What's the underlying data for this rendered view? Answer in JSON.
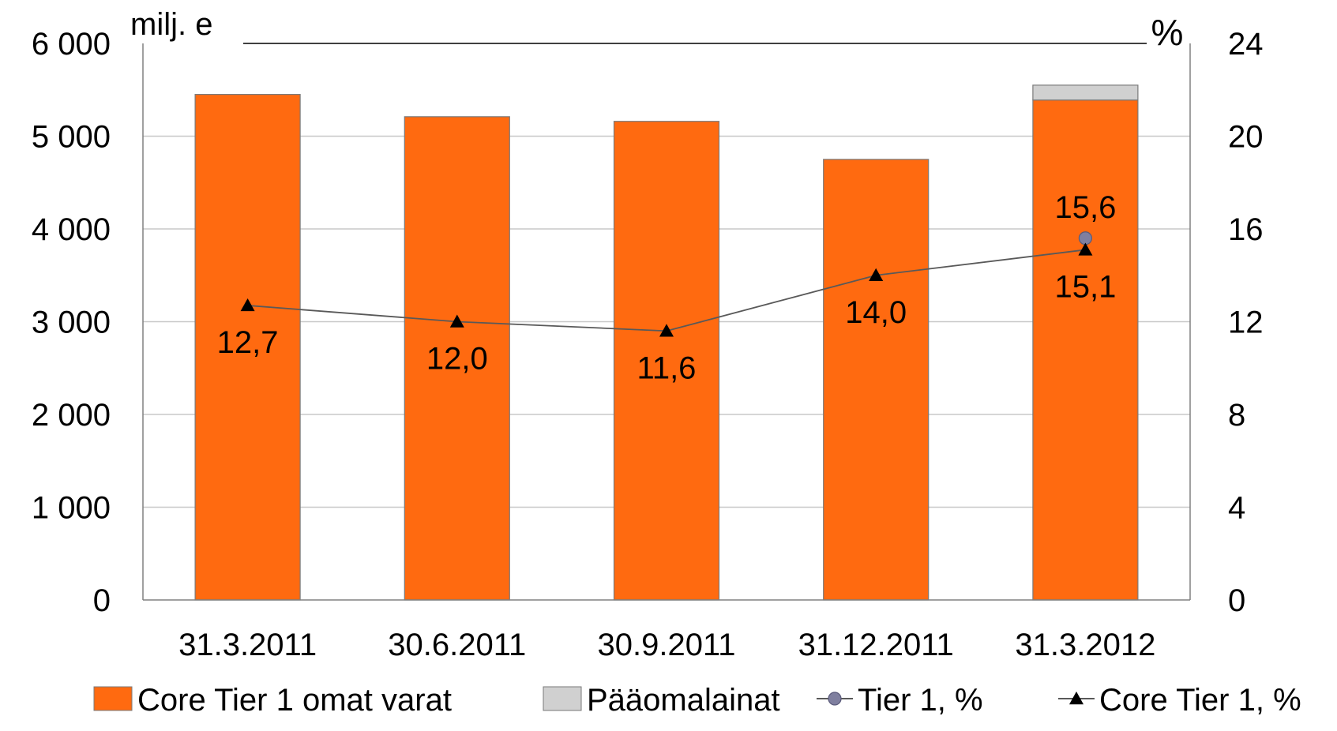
{
  "chart_data": {
    "type": "bar",
    "stacked": true,
    "categories": [
      "31.3.2011",
      "30.6.2011",
      "30.9.2011",
      "31.12.2011",
      "31.3.2012"
    ],
    "left_axis": {
      "unit_label": "milj. e",
      "ylim": [
        0,
        6000
      ],
      "ticks": [
        "0",
        "1 000",
        "2 000",
        "3 000",
        "4 000",
        "5 000",
        "6 000"
      ]
    },
    "right_axis": {
      "unit_label": "%",
      "ylim": [
        0,
        24
      ],
      "ticks": [
        "0",
        "4",
        "8",
        "12",
        "16",
        "20",
        "24"
      ]
    },
    "bar_series": [
      {
        "name": "Core Tier 1 omat varat",
        "color": "#ff6a10",
        "values": [
          5450,
          5210,
          5160,
          4750,
          5390
        ]
      },
      {
        "name": "Pääomalainat",
        "color": "#d0d0d0",
        "values": [
          0,
          0,
          0,
          0,
          160
        ]
      }
    ],
    "line_series": [
      {
        "name": "Tier 1, %",
        "marker": "circle",
        "color": "#7f7f9f",
        "values": [
          null,
          null,
          null,
          null,
          15.6
        ],
        "labels": [
          "",
          "",
          "",
          "",
          "15,6"
        ]
      },
      {
        "name": "Core Tier 1, %",
        "marker": "triangle",
        "color": "#000000",
        "values": [
          12.7,
          12.0,
          11.6,
          14.0,
          15.1
        ],
        "labels": [
          "12,7",
          "12,0",
          "11,6",
          "14,0",
          "15,1"
        ]
      }
    ],
    "grid": true,
    "legend_position": "bottom"
  }
}
